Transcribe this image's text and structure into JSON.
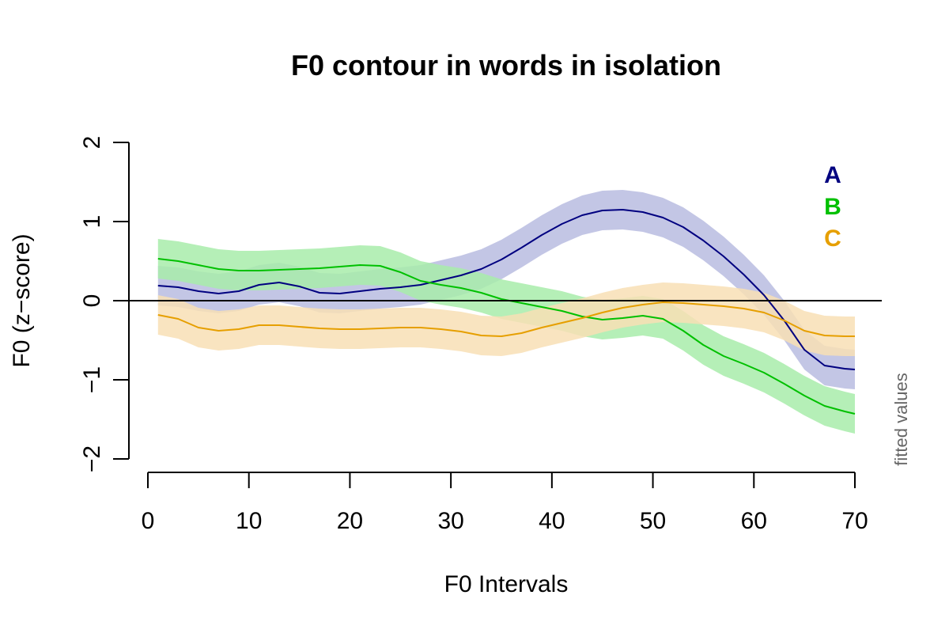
{
  "chart_data": {
    "type": "line",
    "title": "F0 contour in words in isolation",
    "xlabel": "F0 Intervals",
    "ylabel": "F0 (z−score)",
    "side_note": "fitted values",
    "xlim": [
      0,
      70
    ],
    "ylim": [
      -2,
      2
    ],
    "x_ticks": [
      0,
      10,
      20,
      30,
      40,
      50,
      60,
      70
    ],
    "y_ticks": [
      -2,
      -1,
      0,
      1,
      2
    ],
    "y_tick_labels": [
      "−2",
      "−1",
      "0",
      "1",
      "2"
    ],
    "reference_line_y": 0,
    "legend_position": "top-right",
    "band_half_width": 0.25,
    "x": [
      1,
      3,
      5,
      7,
      9,
      11,
      13,
      15,
      17,
      19,
      21,
      23,
      25,
      27,
      29,
      31,
      33,
      35,
      37,
      39,
      41,
      43,
      45,
      47,
      49,
      51,
      53,
      55,
      57,
      59,
      61,
      63,
      65,
      67,
      69,
      70
    ],
    "series": [
      {
        "name": "A",
        "color": "#000080",
        "band_color": "#b8bce0",
        "values": [
          0.19,
          0.17,
          0.12,
          0.09,
          0.12,
          0.2,
          0.23,
          0.18,
          0.1,
          0.09,
          0.12,
          0.15,
          0.17,
          0.2,
          0.26,
          0.32,
          0.4,
          0.52,
          0.67,
          0.83,
          0.97,
          1.08,
          1.14,
          1.15,
          1.12,
          1.05,
          0.93,
          0.76,
          0.56,
          0.33,
          0.07,
          -0.25,
          -0.62,
          -0.82,
          -0.86,
          -0.87
        ]
      },
      {
        "name": "B",
        "color": "#00c000",
        "band_color": "#a8ecaa",
        "values": [
          0.53,
          0.5,
          0.45,
          0.4,
          0.38,
          0.38,
          0.39,
          0.4,
          0.41,
          0.43,
          0.45,
          0.44,
          0.36,
          0.25,
          0.2,
          0.16,
          0.1,
          0.02,
          -0.03,
          -0.08,
          -0.13,
          -0.2,
          -0.24,
          -0.22,
          -0.19,
          -0.23,
          -0.38,
          -0.56,
          -0.7,
          -0.8,
          -0.91,
          -1.05,
          -1.2,
          -1.33,
          -1.4,
          -1.43
        ]
      },
      {
        "name": "C",
        "color": "#e69f00",
        "band_color": "#f8dfb5",
        "values": [
          -0.18,
          -0.23,
          -0.34,
          -0.38,
          -0.36,
          -0.31,
          -0.31,
          -0.33,
          -0.35,
          -0.36,
          -0.36,
          -0.35,
          -0.34,
          -0.34,
          -0.36,
          -0.39,
          -0.44,
          -0.45,
          -0.41,
          -0.34,
          -0.28,
          -0.22,
          -0.15,
          -0.09,
          -0.05,
          -0.02,
          -0.03,
          -0.05,
          -0.07,
          -0.1,
          -0.15,
          -0.25,
          -0.38,
          -0.44,
          -0.45,
          -0.45
        ]
      }
    ]
  }
}
